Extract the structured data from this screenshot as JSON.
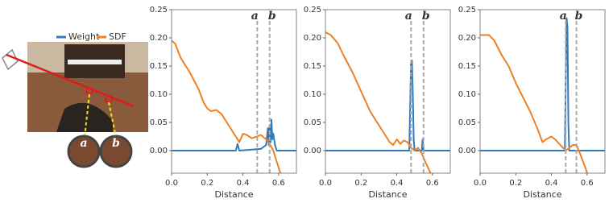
{
  "illustration": {
    "labels": [
      "a",
      "b"
    ]
  },
  "chart_data": [
    {
      "type": "line",
      "xlabel": "Distance",
      "xlim": [
        0,
        0.7
      ],
      "ylim": [
        -0.04,
        0.25
      ],
      "xticks": [
        {
          "value": 0,
          "label": "0.0"
        },
        0.2,
        0.4,
        0.6
      ],
      "yticks": [
        {
          "value": 0,
          "label": "0.00"
        },
        0.05,
        {
          "value": 0.1,
          "label": "0.10"
        },
        0.15,
        {
          "value": 0.2,
          "label": "0.20"
        },
        0.25
      ],
      "legend": true,
      "markers": [
        {
          "label": "a",
          "x": 0.48
        },
        {
          "label": "b",
          "x": 0.55
        }
      ],
      "series": [
        {
          "name": "Weight",
          "color": "#2f7bbd",
          "x": [
            0,
            0.36,
            0.37,
            0.38,
            0.5,
            0.53,
            0.54,
            0.545,
            0.55,
            0.555,
            0.56,
            0.565,
            0.57,
            0.58,
            0.59,
            0.7
          ],
          "values": [
            0,
            0,
            0.012,
            0,
            0.003,
            0.01,
            0.04,
            0.01,
            0.045,
            0.015,
            0.055,
            0.02,
            0.03,
            0.01,
            0,
            0
          ]
        },
        {
          "name": "SDF",
          "color": "#f07f22",
          "x": [
            0,
            0.02,
            0.05,
            0.1,
            0.15,
            0.18,
            0.2,
            0.22,
            0.25,
            0.28,
            0.3,
            0.33,
            0.36,
            0.38,
            0.4,
            0.42,
            0.45,
            0.48,
            0.5,
            0.53,
            0.55,
            0.57,
            0.6,
            0.61
          ],
          "values": [
            0.195,
            0.19,
            0.165,
            0.14,
            0.11,
            0.085,
            0.075,
            0.07,
            0.072,
            0.065,
            0.055,
            0.04,
            0.025,
            0.015,
            0.03,
            0.028,
            0.022,
            0.025,
            0.028,
            0.02,
            0.012,
            0,
            -0.03,
            -0.04
          ]
        }
      ]
    },
    {
      "type": "line",
      "xlabel": "Distance",
      "xlim": [
        0,
        0.7
      ],
      "ylim": [
        -0.04,
        0.25
      ],
      "xticks": [
        {
          "value": 0,
          "label": "0.0"
        },
        0.2,
        0.4,
        0.6
      ],
      "yticks": [
        {
          "value": 0,
          "label": "0.00"
        },
        0.05,
        {
          "value": 0.1,
          "label": "0.10"
        },
        0.15,
        {
          "value": 0.2,
          "label": "0.20"
        },
        0.25
      ],
      "legend": false,
      "markers": [
        {
          "label": "a",
          "x": 0.48
        },
        {
          "label": "b",
          "x": 0.55
        }
      ],
      "series": [
        {
          "name": "Weight",
          "color": "#2f7bbd",
          "x": [
            0,
            0.47,
            0.475,
            0.48,
            0.485,
            0.49,
            0.495,
            0.5,
            0.54,
            0.545,
            0.55,
            0.7
          ],
          "values": [
            0,
            0,
            0.08,
            0.155,
            0.16,
            0.1,
            0.02,
            0,
            0,
            0.02,
            0,
            0
          ]
        },
        {
          "name": "SDF",
          "color": "#f07f22",
          "x": [
            0,
            0.03,
            0.07,
            0.1,
            0.15,
            0.2,
            0.25,
            0.3,
            0.33,
            0.36,
            0.38,
            0.4,
            0.42,
            0.44,
            0.46,
            0.48,
            0.5,
            0.52,
            0.54,
            0.56,
            0.59
          ],
          "values": [
            0.21,
            0.205,
            0.19,
            0.17,
            0.14,
            0.105,
            0.07,
            0.045,
            0.03,
            0.015,
            0.01,
            0.02,
            0.012,
            0.018,
            0.015,
            0.005,
            0,
            0.005,
            -0.005,
            -0.02,
            -0.04
          ]
        }
      ]
    },
    {
      "type": "line",
      "xlabel": "Distance",
      "xlim": [
        0,
        0.7
      ],
      "ylim": [
        -0.04,
        0.25
      ],
      "xticks": [
        {
          "value": 0,
          "label": "0.0"
        },
        0.2,
        0.4,
        0.6
      ],
      "yticks": [
        {
          "value": 0,
          "label": "0.00"
        },
        0.05,
        {
          "value": 0.1,
          "label": "0.10"
        },
        0.15,
        {
          "value": 0.2,
          "label": "0.20"
        },
        0.25
      ],
      "legend": false,
      "markers": [
        {
          "label": "a",
          "x": 0.48
        },
        {
          "label": "b",
          "x": 0.54
        }
      ],
      "series": [
        {
          "name": "Weight",
          "color": "#2f7bbd",
          "x": [
            0,
            0.475,
            0.48,
            0.485,
            0.49,
            0.495,
            0.5,
            0.7
          ],
          "values": [
            0,
            0,
            0.12,
            0.235,
            0.22,
            0.05,
            0,
            0
          ]
        },
        {
          "name": "SDF",
          "color": "#f07f22",
          "x": [
            0,
            0.05,
            0.08,
            0.12,
            0.16,
            0.2,
            0.24,
            0.28,
            0.32,
            0.35,
            0.37,
            0.4,
            0.42,
            0.45,
            0.48,
            0.5,
            0.52,
            0.54,
            0.56,
            0.59,
            0.6
          ],
          "values": [
            0.205,
            0.205,
            0.195,
            0.17,
            0.15,
            0.12,
            0.095,
            0.07,
            0.04,
            0.015,
            0.02,
            0.025,
            0.02,
            0.01,
            0,
            0.005,
            0.01,
            0.01,
            -0.005,
            -0.03,
            -0.04
          ]
        }
      ]
    }
  ]
}
